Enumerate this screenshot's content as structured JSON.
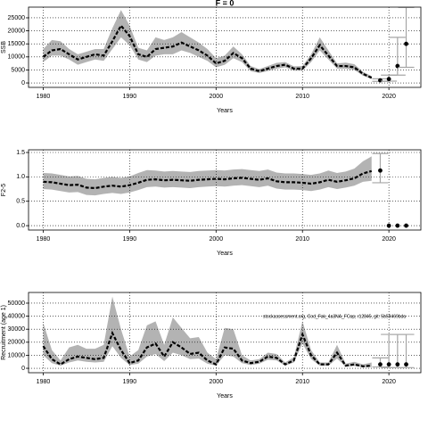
{
  "chart_data": [
    {
      "type": "line",
      "title": "F = 0",
      "xlabel": "Years",
      "ylabel": "SSB",
      "xlim": [
        1978.3,
        2023.7
      ],
      "xticks": [
        1980,
        1990,
        2000,
        2010,
        2020
      ],
      "ylim": [
        -1700,
        29100
      ],
      "yticks": [
        0,
        5000,
        10000,
        15000,
        20000,
        25000
      ],
      "grid": true,
      "line_color": "#000000",
      "band_color": "#b3b3b3",
      "point_color": "#000000",
      "errorbar_color": "#a6a6a6",
      "x": [
        1980,
        1981,
        1982,
        1983,
        1984,
        1985,
        1986,
        1987,
        1988,
        1989,
        1990,
        1991,
        1992,
        1993,
        1994,
        1995,
        1996,
        1997,
        1998,
        1999,
        2000,
        2001,
        2002,
        2003,
        2004,
        2005,
        2006,
        2007,
        2008,
        2009,
        2010,
        2011,
        2012,
        2013,
        2014,
        2015,
        2016,
        2017,
        2018
      ],
      "values": [
        10000,
        12500,
        13000,
        11000,
        9000,
        10000,
        11000,
        10500,
        16000,
        22000,
        18000,
        11000,
        10000,
        13000,
        13500,
        14000,
        15500,
        14000,
        12500,
        10500,
        7500,
        8500,
        11500,
        9500,
        5500,
        4500,
        5500,
        6500,
        7000,
        5500,
        5500,
        9500,
        14500,
        10500,
        6500,
        6500,
        6000,
        3500,
        2000
      ],
      "lower": [
        8000,
        10500,
        10500,
        9000,
        7000,
        8000,
        9000,
        8500,
        13000,
        17500,
        14500,
        9000,
        8000,
        10500,
        11000,
        11000,
        12500,
        11500,
        10000,
        8500,
        6000,
        7000,
        9500,
        8000,
        4500,
        3800,
        4600,
        5500,
        6000,
        4700,
        4700,
        8000,
        12500,
        9000,
        5500,
        5500,
        5000,
        2800,
        1500
      ],
      "upper": [
        13000,
        16500,
        16000,
        13000,
        11000,
        12000,
        13000,
        13000,
        21000,
        28000,
        22000,
        13500,
        12500,
        17500,
        16500,
        17500,
        19500,
        17500,
        15500,
        13000,
        9500,
        10500,
        14000,
        11000,
        6500,
        5300,
        6500,
        7700,
        8000,
        6400,
        6500,
        11000,
        17500,
        12500,
        7500,
        7800,
        7200,
        4300,
        2600
      ],
      "projection": {
        "x": [
          2019,
          2020,
          2021,
          2022
        ],
        "values": [
          1000,
          1500,
          6500,
          15000
        ],
        "lower": [
          600,
          700,
          3000,
          6000
        ],
        "upper": [
          1600,
          3000,
          17500,
          29000
        ]
      }
    },
    {
      "type": "line",
      "xlabel": "Years",
      "ylabel": "F2-5",
      "xlim": [
        1978.3,
        2023.7
      ],
      "xticks": [
        1980,
        1990,
        2000,
        2010,
        2020
      ],
      "ylim": [
        -0.09,
        1.555
      ],
      "yticks": [
        {
          "value": 0,
          "label": "0.0"
        },
        {
          "value": 0.5,
          "label": "0.5"
        },
        {
          "value": 1,
          "label": "1.0"
        },
        {
          "value": 1.5,
          "label": "1.5"
        }
      ],
      "grid": true,
      "line_color": "#000000",
      "band_color": "#b3b3b3",
      "point_color": "#000000",
      "errorbar_color": "#a6a6a6",
      "x": [
        1980,
        1981,
        1982,
        1983,
        1984,
        1985,
        1986,
        1987,
        1988,
        1989,
        1990,
        1991,
        1992,
        1993,
        1994,
        1995,
        1996,
        1997,
        1998,
        1999,
        2000,
        2001,
        2002,
        2003,
        2004,
        2005,
        2006,
        2007,
        2008,
        2009,
        2010,
        2011,
        2012,
        2013,
        2014,
        2015,
        2016,
        2017,
        2018
      ],
      "values": [
        0.9,
        0.89,
        0.86,
        0.83,
        0.84,
        0.78,
        0.77,
        0.8,
        0.82,
        0.8,
        0.83,
        0.88,
        0.94,
        0.95,
        0.93,
        0.94,
        0.93,
        0.92,
        0.94,
        0.95,
        0.96,
        0.95,
        0.97,
        0.98,
        0.96,
        0.94,
        0.97,
        0.91,
        0.89,
        0.89,
        0.88,
        0.86,
        0.89,
        0.94,
        0.9,
        0.93,
        0.97,
        1.07,
        1.12
      ],
      "lower": [
        0.75,
        0.74,
        0.71,
        0.68,
        0.69,
        0.63,
        0.62,
        0.65,
        0.67,
        0.65,
        0.68,
        0.73,
        0.79,
        0.8,
        0.78,
        0.79,
        0.78,
        0.77,
        0.79,
        0.8,
        0.81,
        0.8,
        0.82,
        0.83,
        0.81,
        0.79,
        0.82,
        0.76,
        0.74,
        0.74,
        0.73,
        0.71,
        0.74,
        0.79,
        0.75,
        0.78,
        0.82,
        0.9,
        0.92
      ],
      "upper": [
        1.08,
        1.07,
        1.04,
        1.01,
        1.02,
        0.96,
        0.95,
        0.98,
        1.0,
        0.98,
        1.01,
        1.08,
        1.14,
        1.13,
        1.11,
        1.12,
        1.11,
        1.1,
        1.12,
        1.13,
        1.14,
        1.13,
        1.15,
        1.16,
        1.14,
        1.12,
        1.15,
        1.09,
        1.07,
        1.07,
        1.06,
        1.04,
        1.07,
        1.13,
        1.08,
        1.11,
        1.17,
        1.32,
        1.42
      ],
      "projection": {
        "x": [
          2019,
          2020,
          2021,
          2022
        ],
        "values": [
          1.13,
          0,
          0,
          0
        ],
        "lower": [
          0.88,
          0,
          0,
          0
        ],
        "upper": [
          1.48,
          0,
          0,
          0
        ]
      }
    },
    {
      "type": "line",
      "xlabel": "Years",
      "ylabel": "Recruitment (age 1)",
      "annotation": "stockassessment.org, Cod_Fak_4a3NA_FCap, r12845, git: 5b59469bda",
      "xlim": [
        1978.3,
        2023.7
      ],
      "xticks": [
        1980,
        1990,
        2000,
        2010,
        2020
      ],
      "ylim": [
        -3400,
        58200
      ],
      "yticks": [
        0,
        10000,
        20000,
        30000,
        40000,
        50000
      ],
      "grid": true,
      "line_color": "#000000",
      "band_color": "#b3b3b3",
      "point_color": "#000000",
      "errorbar_color": "#a6a6a6",
      "x": [
        1980,
        1981,
        1982,
        1983,
        1984,
        1985,
        1986,
        1987,
        1988,
        1989,
        1990,
        1991,
        1992,
        1993,
        1994,
        1995,
        1996,
        1997,
        1998,
        1999,
        2000,
        2001,
        2002,
        2003,
        2004,
        2005,
        2006,
        2007,
        2008,
        2009,
        2010,
        2011,
        2012,
        2013,
        2014,
        2015,
        2016,
        2017,
        2018
      ],
      "values": [
        17000,
        7000,
        3000,
        7000,
        9000,
        8000,
        7000,
        8000,
        27000,
        14000,
        4000,
        6000,
        16000,
        19000,
        9000,
        20000,
        16000,
        11000,
        12000,
        6000,
        3000,
        16000,
        15000,
        6000,
        4000,
        5000,
        9000,
        8000,
        3000,
        6000,
        26000,
        10000,
        3000,
        3000,
        12000,
        2000,
        3000,
        1500,
        2000
      ],
      "lower": [
        10000,
        4000,
        2000,
        4500,
        6000,
        5000,
        4500,
        5000,
        17000,
        8000,
        2500,
        3500,
        9000,
        11000,
        5500,
        12000,
        10000,
        7000,
        7500,
        3500,
        2000,
        10000,
        9000,
        4000,
        2500,
        3500,
        6500,
        6000,
        2000,
        4500,
        19000,
        7000,
        2000,
        2000,
        7500,
        1200,
        1800,
        800,
        1000
      ],
      "upper": [
        35000,
        14000,
        6000,
        16000,
        18000,
        15000,
        15000,
        18000,
        55000,
        30000,
        9000,
        14000,
        33000,
        36000,
        18000,
        39000,
        31000,
        23000,
        24000,
        12000,
        7000,
        31000,
        30000,
        10000,
        6000,
        7000,
        12000,
        11000,
        4500,
        8500,
        36000,
        14000,
        4500,
        4500,
        18000,
        3500,
        5000,
        3000,
        4500
      ],
      "projection": {
        "x": [
          2019,
          2020,
          2021,
          2022
        ],
        "values": [
          3000,
          3000,
          3000,
          3000
        ],
        "lower": [
          1000,
          500,
          500,
          500
        ],
        "upper": [
          8000,
          26000,
          26000,
          26000
        ]
      }
    }
  ]
}
